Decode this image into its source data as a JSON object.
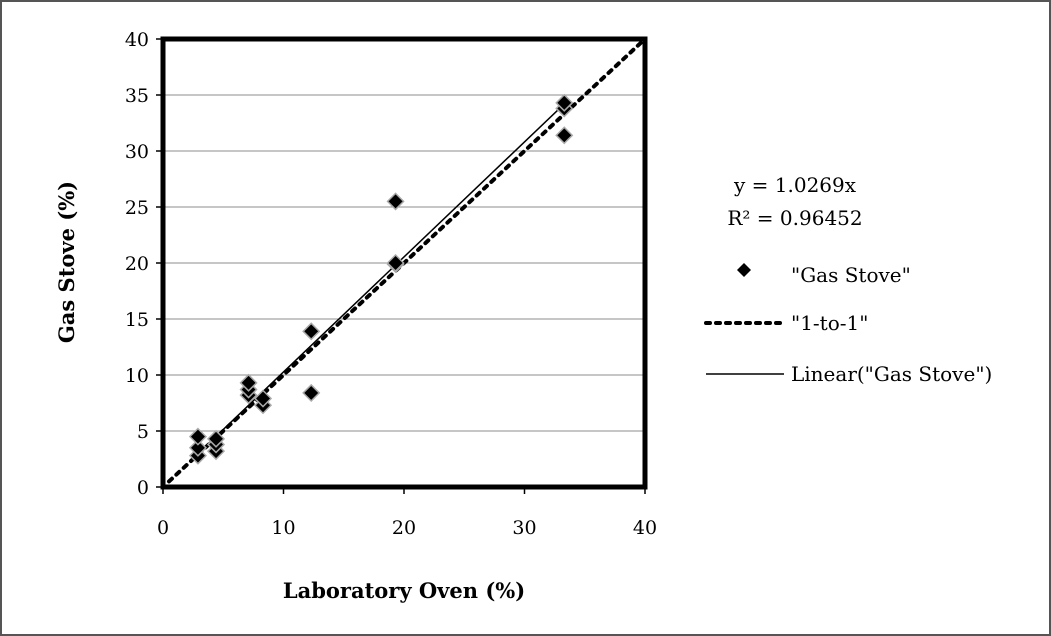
{
  "chart_data": {
    "type": "scatter",
    "title": "",
    "xlabel": "Laboratory Oven (%)",
    "ylabel": "Gas Stove (%)",
    "xlim": [
      0,
      40
    ],
    "ylim": [
      0,
      40
    ],
    "x_ticks": [
      "0",
      "10",
      "20",
      "30",
      "40"
    ],
    "y_ticks": [
      "0",
      "5",
      "10",
      "15",
      "20",
      "25",
      "30",
      "35",
      "40"
    ],
    "grid": "horizontal major gridlines",
    "legend_position": "right",
    "trendline_equation": "y = 1.0269x",
    "trendline_r2": "R² = 0.96452",
    "series": [
      {
        "name": "\"Gas Stove\"",
        "kind": "scatter",
        "marker": "diamond",
        "color": "#000000",
        "points": [
          [
            2.9,
            2.8
          ],
          [
            2.9,
            3.5
          ],
          [
            2.9,
            4.5
          ],
          [
            4.4,
            3.2
          ],
          [
            4.4,
            3.8
          ],
          [
            4.4,
            4.3
          ],
          [
            7.1,
            8.2
          ],
          [
            7.1,
            8.7
          ],
          [
            7.1,
            9.3
          ],
          [
            8.3,
            7.3
          ],
          [
            8.3,
            7.9
          ],
          [
            12.3,
            8.4
          ],
          [
            12.3,
            13.9
          ],
          [
            19.3,
            19.9
          ],
          [
            19.3,
            20.0
          ],
          [
            19.3,
            25.5
          ],
          [
            33.3,
            31.4
          ],
          [
            33.3,
            33.8
          ],
          [
            33.3,
            34.3
          ]
        ]
      },
      {
        "name": "\"1-to-1\"",
        "kind": "line",
        "style": "dotted",
        "color": "#000000",
        "points": [
          [
            0.5,
            0.5
          ],
          [
            40,
            40
          ]
        ]
      },
      {
        "name": "Linear(\"Gas Stove\")",
        "kind": "line",
        "style": "solid",
        "color": "#000000",
        "points": [
          [
            2.9,
            2.98
          ],
          [
            33.3,
            34.2
          ]
        ]
      }
    ]
  }
}
